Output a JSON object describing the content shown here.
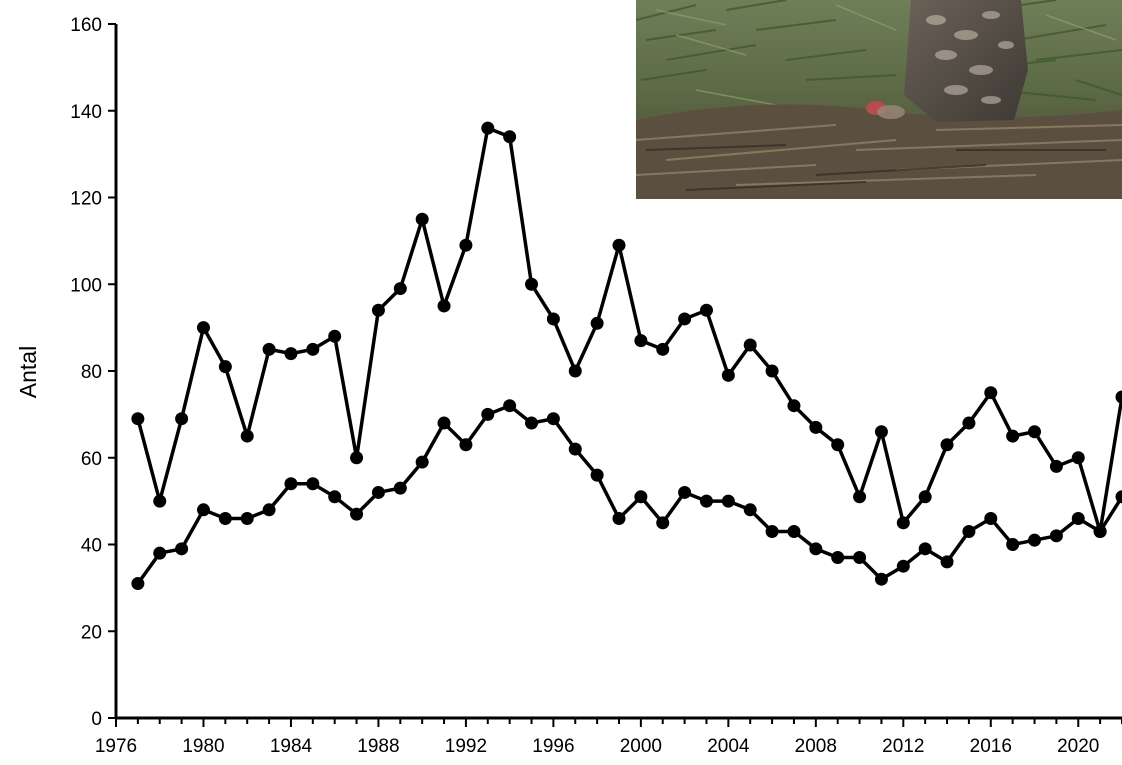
{
  "chart_data": {
    "type": "line",
    "title": "",
    "xlabel": "",
    "ylabel": "Antal",
    "xlim": [
      1976,
      2022
    ],
    "ylim": [
      0,
      160
    ],
    "x_ticks": [
      1976,
      1980,
      1984,
      1988,
      1992,
      1996,
      2000,
      2004,
      2008,
      2012,
      2016,
      2020
    ],
    "y_ticks": [
      0,
      20,
      40,
      60,
      80,
      100,
      120,
      140,
      160
    ],
    "grid": false,
    "legend": "none",
    "series_color": "#000000",
    "series": [
      {
        "x": [
          1977,
          1978,
          1979,
          1980,
          1981,
          1982,
          1983,
          1984,
          1985,
          1986,
          1987,
          1988,
          1989,
          1990,
          1991,
          1992,
          1993,
          1994,
          1995,
          1996,
          1997,
          1998,
          1999,
          2000,
          2001,
          2002,
          2003,
          2004,
          2005,
          2006,
          2007,
          2008,
          2009,
          2010,
          2011,
          2012,
          2013,
          2014,
          2015,
          2016,
          2017,
          2018,
          2019,
          2020,
          2021,
          2022
        ],
        "values": [
          69,
          50,
          69,
          90,
          81,
          65,
          85,
          84,
          85,
          88,
          60,
          94,
          99,
          115,
          95,
          109,
          136,
          134,
          100,
          92,
          80,
          91,
          109,
          87,
          85,
          92,
          94,
          79,
          86,
          80,
          72,
          67,
          63,
          51,
          66,
          45,
          51,
          63,
          68,
          75,
          65,
          66,
          58,
          60,
          43,
          74
        ]
      },
      {
        "x": [
          1977,
          1978,
          1979,
          1980,
          1981,
          1982,
          1983,
          1984,
          1985,
          1986,
          1987,
          1988,
          1989,
          1990,
          1991,
          1992,
          1993,
          1994,
          1995,
          1996,
          1997,
          1998,
          1999,
          2000,
          2001,
          2002,
          2003,
          2004,
          2005,
          2006,
          2007,
          2008,
          2009,
          2010,
          2011,
          2012,
          2013,
          2014,
          2015,
          2016,
          2017,
          2018,
          2019,
          2020,
          2021,
          2022
        ],
        "values": [
          31,
          38,
          39,
          48,
          46,
          46,
          48,
          54,
          54,
          51,
          47,
          52,
          53,
          59,
          68,
          63,
          70,
          72,
          68,
          69,
          62,
          56,
          46,
          51,
          45,
          52,
          50,
          50,
          48,
          43,
          43,
          39,
          37,
          37,
          32,
          35,
          39,
          36,
          43,
          46,
          40,
          41,
          42,
          46,
          43,
          51
        ]
      }
    ]
  },
  "photo": {
    "subject": "hawk-on-nest-photo"
  }
}
